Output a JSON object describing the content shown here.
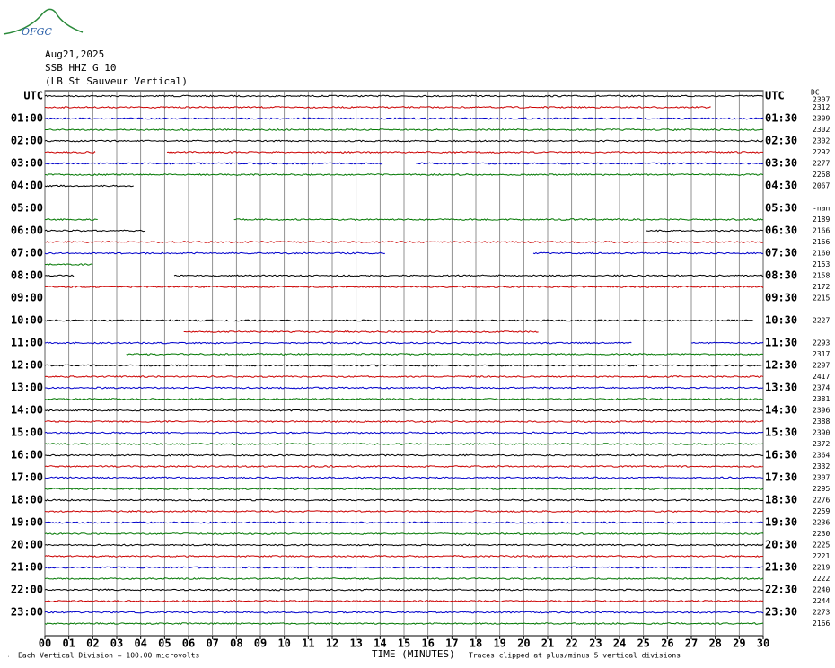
{
  "logo": "OFGC",
  "header": [
    "Aug21,2025",
    "SSB HHZ G 10",
    "(LB St Sauveur Vertical)"
  ],
  "left_labels": [
    "UTC",
    "01:00",
    "02:00",
    "03:00",
    "04:00",
    "05:00",
    "06:00",
    "07:00",
    "08:00",
    "09:00",
    "10:00",
    "11:00",
    "12:00",
    "13:00",
    "14:00",
    "15:00",
    "16:00",
    "17:00",
    "18:00",
    "19:00",
    "20:00",
    "21:00",
    "22:00",
    "23:00"
  ],
  "right_labels": [
    "UTC",
    "01:30",
    "02:30",
    "03:30",
    "04:30",
    "05:30",
    "06:30",
    "07:30",
    "08:30",
    "09:30",
    "10:30",
    "11:30",
    "12:30",
    "13:30",
    "14:30",
    "15:30",
    "16:30",
    "17:30",
    "18:30",
    "19:30",
    "20:30",
    "21:30",
    "22:30",
    "23:30"
  ],
  "dc_label": "DC",
  "trace_values": [
    2307,
    2312,
    2309,
    2302,
    2302,
    2292,
    2277,
    2268,
    2067,
    null,
    "-nan",
    2189,
    2166,
    2166,
    2160,
    2153,
    2158,
    2172,
    2215,
    null,
    2227,
    null,
    2293,
    2317,
    2297,
    2417,
    2374,
    2381,
    2396,
    2388,
    2390,
    2372,
    2364,
    2332,
    2307,
    2295,
    2276,
    2259,
    2236,
    2230,
    2225,
    2221,
    2219,
    2222,
    2240,
    2244,
    2273,
    2166
  ],
  "trace_colors": [
    "#000000",
    "#cc0000",
    "#0000cc",
    "#007700"
  ],
  "traces": [
    [
      [
        0,
        30
      ]
    ],
    [
      [
        0,
        27.8
      ]
    ],
    [
      [
        0,
        30
      ]
    ],
    [
      [
        0,
        30
      ]
    ],
    [
      [
        0,
        30
      ]
    ],
    [
      [
        0,
        2.1
      ],
      [
        5.1,
        30
      ]
    ],
    [
      [
        0,
        14.1
      ],
      [
        15.5,
        30
      ]
    ],
    [
      [
        0,
        30
      ]
    ],
    [
      [
        0,
        3.7
      ]
    ],
    [],
    [],
    [
      [
        0,
        2.2
      ],
      [
        7.9,
        30
      ]
    ],
    [
      [
        0,
        4.2
      ],
      [
        25.1,
        30
      ]
    ],
    [
      [
        0,
        30
      ]
    ],
    [
      [
        0,
        14.2
      ],
      [
        20.4,
        30
      ]
    ],
    [
      [
        0,
        2
      ]
    ],
    [
      [
        0,
        1.2
      ],
      [
        5.4,
        30
      ]
    ],
    [
      [
        0,
        30
      ]
    ],
    [],
    [],
    [
      [
        0,
        29.6
      ]
    ],
    [
      [
        5.8,
        20.6
      ]
    ],
    [
      [
        0,
        24.5
      ],
      [
        27,
        30
      ]
    ],
    [
      [
        3.4,
        30
      ]
    ],
    [
      [
        0,
        30
      ]
    ],
    [
      [
        0,
        30
      ]
    ],
    [
      [
        0,
        30
      ]
    ],
    [
      [
        0,
        30
      ]
    ],
    [
      [
        0,
        30
      ]
    ],
    [
      [
        0,
        30
      ]
    ],
    [
      [
        0,
        30
      ]
    ],
    [
      [
        0,
        30
      ]
    ],
    [
      [
        0,
        30
      ]
    ],
    [
      [
        0,
        30
      ]
    ],
    [
      [
        0,
        30
      ]
    ],
    [
      [
        0,
        30
      ]
    ],
    [
      [
        0,
        30
      ]
    ],
    [
      [
        0,
        30
      ]
    ],
    [
      [
        0,
        30
      ]
    ],
    [
      [
        0,
        30
      ]
    ],
    [
      [
        0,
        30
      ]
    ],
    [
      [
        0,
        30
      ]
    ],
    [
      [
        0,
        30
      ]
    ],
    [
      [
        0,
        30
      ]
    ],
    [
      [
        0,
        30
      ]
    ],
    [
      [
        0,
        30
      ]
    ],
    [
      [
        0,
        30
      ]
    ],
    [
      [
        0,
        30
      ]
    ]
  ],
  "x_ticks": [
    "00",
    "01",
    "02",
    "03",
    "04",
    "05",
    "06",
    "07",
    "08",
    "09",
    "10",
    "11",
    "12",
    "13",
    "14",
    "15",
    "16",
    "17",
    "18",
    "19",
    "20",
    "21",
    "22",
    "23",
    "24",
    "25",
    "26",
    "27",
    "28",
    "29",
    "30"
  ],
  "x_label": "TIME (MINUTES)",
  "footer_left": "Each Vertical Division =  100.00 microvolts",
  "footer_right": "Traces clipped at plus/minus 5 vertical divisions"
}
